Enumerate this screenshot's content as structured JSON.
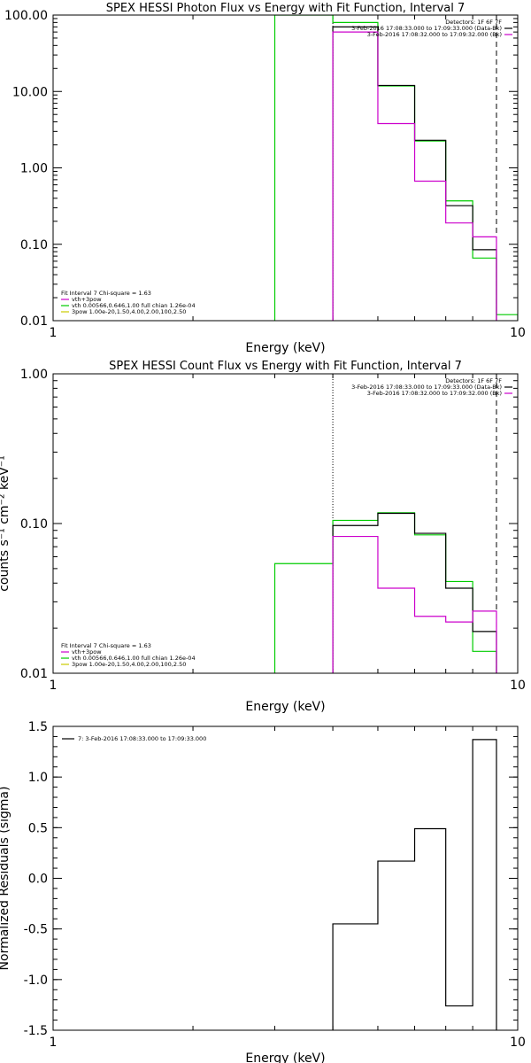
{
  "chart_data": [
    {
      "type": "line",
      "title": "SPEX HESSI Photon Flux vs Energy with Fit Function, Interval 7",
      "xlabel": "Energy (keV)",
      "ylabel": "",
      "x_scale": "log",
      "y_scale": "log",
      "xlim": [
        1,
        10
      ],
      "ylim": [
        0.01,
        100
      ],
      "x_tick_labels": [
        {
          "value": 1,
          "label": "1"
        },
        {
          "value": 10,
          "label": "10"
        }
      ],
      "y_tick_labels": [
        {
          "value": 100,
          "label": "100.00"
        },
        {
          "value": 10,
          "label": "10.00"
        },
        {
          "value": 1,
          "label": "1.00"
        },
        {
          "value": 0.1,
          "label": "0.10"
        },
        {
          "value": 0.01,
          "label": "0.01"
        }
      ],
      "legend_top_right": [
        {
          "text": "Detectors: 1F 6F 7F",
          "color": ""
        },
        {
          "text": "3-Feb-2016 17:08:33.000 to 17:09:33.000 (Data-Bk)",
          "color": "#000000"
        },
        {
          "text": "3-Feb-2016 17:08:32.000 to 17:09:32.000 (Bk)",
          "color": "#cc00cc"
        }
      ],
      "legend_bottom_left": [
        {
          "text": "Fit Interval 7   Chi-square = 1.63",
          "color": ""
        },
        {
          "text": "vth+3pow",
          "color": "#cc00cc"
        },
        {
          "text": "vth 0.00566,0.646,1.00  full chian 1.26e-04",
          "color": "#00cc00"
        },
        {
          "text": "3pow 1.00e-20,1.50,4.00,2.00,100,2.50",
          "color": "#cccc00"
        }
      ],
      "vlines": [
        {
          "x": 4.0,
          "style": "dotted"
        },
        {
          "x": 9.0,
          "style": "dashed"
        }
      ],
      "series": [
        {
          "name": "Data-Bk",
          "color": "#000000",
          "bins": [
            [
              4,
              5,
              70
            ],
            [
              5,
              6,
              12
            ],
            [
              6,
              7,
              2.3
            ],
            [
              7,
              8,
              0.32
            ],
            [
              8,
              9,
              0.085
            ]
          ]
        },
        {
          "name": "Bk",
          "color": "#cc00cc",
          "bins": [
            [
              4,
              5,
              60
            ],
            [
              5,
              6,
              3.8
            ],
            [
              6,
              7,
              0.67
            ],
            [
              7,
              8,
              0.19
            ],
            [
              8,
              9,
              0.125
            ]
          ]
        },
        {
          "name": "vth+3pow",
          "color": "#00cc00",
          "bins": [
            [
              3,
              4,
              100
            ],
            [
              4,
              5,
              80
            ],
            [
              5,
              6,
              11.8
            ],
            [
              6,
              7,
              2.25
            ],
            [
              7,
              8,
              0.37
            ],
            [
              8,
              9,
              0.066
            ],
            [
              9,
              10,
              0.012
            ]
          ]
        }
      ]
    },
    {
      "type": "line",
      "title": "SPEX HESSI Count Flux vs Energy with Fit Function, Interval 7",
      "xlabel": "Energy (keV)",
      "ylabel": "counts s⁻¹ cm⁻² keV⁻¹",
      "x_scale": "log",
      "y_scale": "log",
      "xlim": [
        1,
        10
      ],
      "ylim": [
        0.01,
        1
      ],
      "x_tick_labels": [
        {
          "value": 1,
          "label": "1"
        },
        {
          "value": 10,
          "label": "10"
        }
      ],
      "y_tick_labels": [
        {
          "value": 1,
          "label": "1.00"
        },
        {
          "value": 0.1,
          "label": "0.10"
        },
        {
          "value": 0.01,
          "label": "0.01"
        }
      ],
      "legend_top_right": [
        {
          "text": "Detectors: 1F 6F 7F",
          "color": ""
        },
        {
          "text": "3-Feb-2016 17:08:33.000 to 17:09:33.000 (Data-Bk)",
          "color": "#000000"
        },
        {
          "text": "3-Feb-2016 17:08:32.000 to 17:09:32.000 (Bk)",
          "color": "#cc00cc"
        }
      ],
      "legend_bottom_left": [
        {
          "text": "Fit Interval 7   Chi-square = 1.63",
          "color": ""
        },
        {
          "text": "vth+3pow",
          "color": "#cc00cc"
        },
        {
          "text": "vth 0.00566,0.646,1.00  full chian 1.26e-04",
          "color": "#00cc00"
        },
        {
          "text": "3pow 1.00e-20,1.50,4.00,2.00,100,2.50",
          "color": "#cccc00"
        }
      ],
      "vlines": [
        {
          "x": 4.0,
          "style": "dotted"
        },
        {
          "x": 9.0,
          "style": "dashed"
        }
      ],
      "series": [
        {
          "name": "Data-Bk",
          "color": "#000000",
          "bins": [
            [
              4,
              5,
              0.097
            ],
            [
              5,
              6,
              0.117
            ],
            [
              6,
              7,
              0.086
            ],
            [
              7,
              8,
              0.037
            ],
            [
              8,
              9,
              0.019
            ]
          ]
        },
        {
          "name": "Bk",
          "color": "#cc00cc",
          "bins": [
            [
              4,
              5,
              0.082
            ],
            [
              5,
              6,
              0.037
            ],
            [
              6,
              7,
              0.024
            ],
            [
              7,
              8,
              0.022
            ],
            [
              8,
              9,
              0.026
            ]
          ]
        },
        {
          "name": "vth+3pow",
          "color": "#00cc00",
          "bins": [
            [
              3,
              4,
              0.054
            ],
            [
              4,
              5,
              0.105
            ],
            [
              5,
              6,
              0.118
            ],
            [
              6,
              7,
              0.084
            ],
            [
              7,
              8,
              0.041
            ],
            [
              8,
              9,
              0.014
            ]
          ]
        }
      ]
    },
    {
      "type": "line",
      "title": "",
      "xlabel": "Energy (keV)",
      "ylabel": "Normalized Residuals (sigma)",
      "x_scale": "log",
      "y_scale": "linear",
      "xlim": [
        1,
        10
      ],
      "ylim": [
        -1.5,
        1.5
      ],
      "x_tick_labels": [
        {
          "value": 1,
          "label": "1"
        },
        {
          "value": 10,
          "label": "10"
        }
      ],
      "y_tick_labels": [
        {
          "value": 1.5,
          "label": "1.5"
        },
        {
          "value": 1.0,
          "label": "1.0"
        },
        {
          "value": 0.5,
          "label": "0.5"
        },
        {
          "value": 0.0,
          "label": "0.0"
        },
        {
          "value": -0.5,
          "label": "-0.5"
        },
        {
          "value": -1.0,
          "label": "-1.0"
        },
        {
          "value": -1.5,
          "label": "-1.5"
        }
      ],
      "legend_top_left": [
        {
          "text": "7:  3-Feb-2016 17:08:33.000 to 17:09:33.000",
          "color": "#000000"
        }
      ],
      "series": [
        {
          "name": "7:  3-Feb-2016 17:08:33.000 to 17:09:33.000",
          "color": "#000000",
          "bins": [
            [
              4,
              5,
              -0.45
            ],
            [
              5,
              6,
              0.17
            ],
            [
              6,
              7,
              0.49
            ],
            [
              7,
              8,
              -1.26
            ],
            [
              8,
              9,
              1.37
            ]
          ]
        }
      ]
    }
  ]
}
